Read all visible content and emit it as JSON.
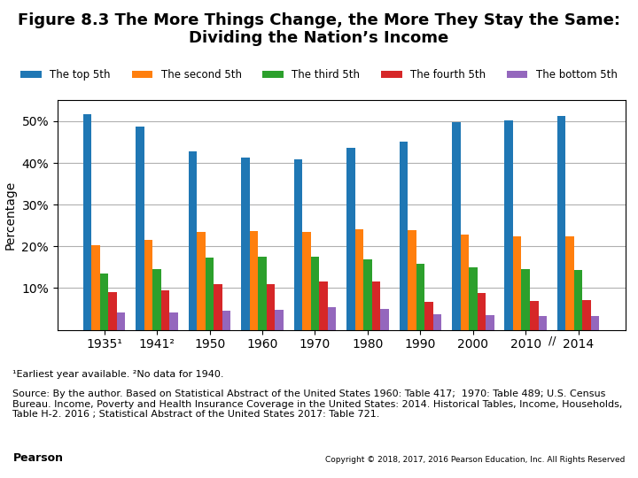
{
  "chart_data": {
    "type": "bar",
    "title": "Figure 8.3 The More Things Change, the More They Stay the Same: Dividing the Nation’s Income",
    "y_label": "Percentage",
    "categories": [
      "1935¹",
      "1941²",
      "1950",
      "1960",
      "1970",
      "1980",
      "1990",
      "2000",
      "2010",
      "2014"
    ],
    "series": [
      {
        "name": "The top 5th",
        "values": [
          51.7,
          48.8,
          42.7,
          41.3,
          40.9,
          43.7,
          45.2,
          49.8,
          50.3,
          51.2
        ]
      },
      {
        "name": "The second 5th",
        "values": [
          20.3,
          21.5,
          23.4,
          23.6,
          23.5,
          24.1,
          23.8,
          22.8,
          22.5,
          22.5
        ]
      },
      {
        "name": "The third 5th",
        "values": [
          13.5,
          14.6,
          17.4,
          17.6,
          17.6,
          16.8,
          15.9,
          14.9,
          14.6,
          14.3
        ]
      },
      {
        "name": "The fourth 5th",
        "values": [
          9.0,
          9.5,
          11.0,
          11.0,
          11.6,
          11.6,
          6.8,
          8.9,
          7.0,
          7.2
        ]
      },
      {
        "name": "The bottom 5th",
        "values": [
          4.1,
          4.1,
          4.5,
          4.9,
          5.4,
          5.1,
          3.8,
          3.6,
          3.3,
          3.4
        ]
      }
    ],
    "ylim": [
      0,
      55
    ],
    "yticks": [
      {
        "value": 10,
        "label": "10%"
      },
      {
        "value": 20,
        "label": "20%"
      },
      {
        "value": 30,
        "label": "30%"
      },
      {
        "value": 40,
        "label": "40%"
      },
      {
        "value": 50,
        "label": "50%"
      }
    ],
    "grid": true,
    "legend": "upper center",
    "annotations": [
      "//",
      "¹Earliest year available. ²No data for 1940.",
      "Source: By the author. Based on Statistical Abstract of the United States 1960: Table 417;  1970: Table 489; U.S. Census Bureau. Income, Poverty and Health Insurance Coverage in the United States: 2014. Historical Tables, Income, Households, Table H-2. 2016 ; Statistical Abstract of the United States 2017: Table 721.",
      "Pearson",
      "Copyright © 2018, 2017, 2016 Pearson Education, Inc. All Rights Reserved"
    ]
  }
}
